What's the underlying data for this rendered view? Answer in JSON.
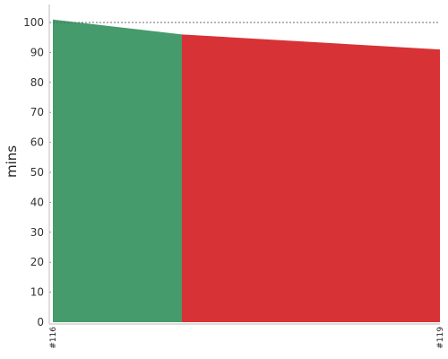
{
  "chart_data": {
    "type": "area",
    "title": "",
    "xlabel": "",
    "ylabel": "mins",
    "ylim": [
      0,
      106
    ],
    "y_ticks": [
      0,
      10,
      20,
      30,
      40,
      50,
      60,
      70,
      80,
      90,
      100
    ],
    "x_tick_labels": [
      "#116",
      "#119"
    ],
    "reference_line": 100,
    "grid": true,
    "series": [
      {
        "points": [
          [
            116,
            101
          ],
          [
            117,
            96
          ],
          [
            119,
            91
          ]
        ],
        "segment_colors": [
          "#459b6b",
          "#d73336"
        ]
      }
    ]
  }
}
